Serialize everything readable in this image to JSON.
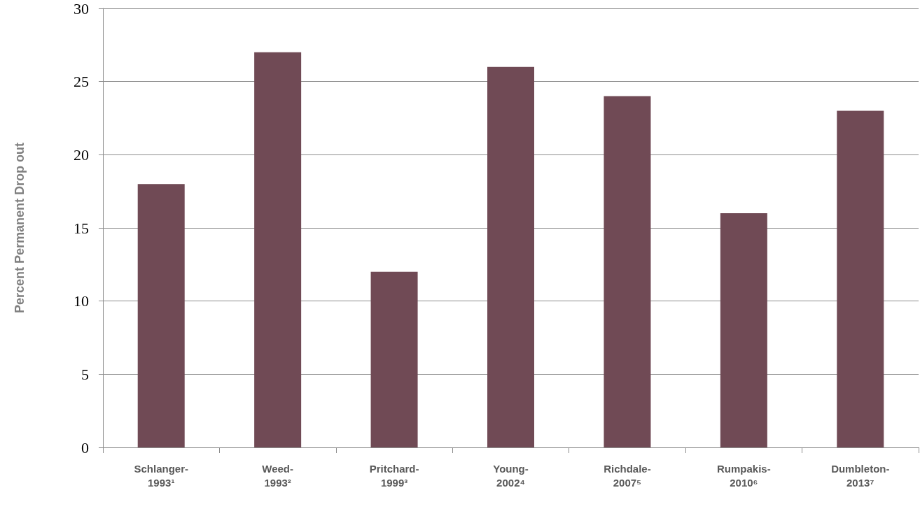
{
  "chart_data": {
    "type": "bar",
    "ylabel": "Percent Permanent Drop out",
    "categories": [
      "Schlanger-1993¹",
      "Weed-1993²",
      "Pritchard-1999³",
      "Young-2002⁴",
      "Richdale-2007⁵",
      "Rumpakis-2010⁶",
      "Dumbleton-2013⁷"
    ],
    "values": [
      18,
      27,
      12,
      26,
      24,
      16,
      23
    ],
    "color": "#704a55",
    "ylim": [
      0,
      30
    ],
    "yticks": [
      0,
      5,
      10,
      15,
      20,
      25,
      30
    ],
    "grid": "y"
  }
}
